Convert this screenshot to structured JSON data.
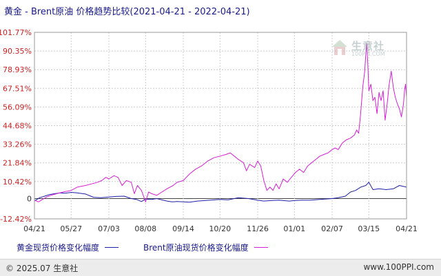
{
  "title": "黄金 - Brent原油 价格趋势比较(2021-04-21 - 2022-04-21)",
  "footer": {
    "copyright": "© 2025.07 生意社",
    "website": "www.100PPI.com"
  },
  "watermark": {
    "name": "生意社",
    "url": "100PPI.COM"
  },
  "colors": {
    "gold_series": "#1f1fa8",
    "brent_series": "#d61fd6",
    "axis_positive": "#cc2222",
    "axis_negative": "#cc2222",
    "grid": "#cccccc",
    "zero_line": "#444444"
  },
  "chart_data": {
    "type": "line",
    "ylim": [
      -12.42,
      101.77
    ],
    "yticks": [
      "101.77%",
      "90.35%",
      "78.93%",
      "67.51%",
      "56.09%",
      "44.68%",
      "33.26%",
      "21.84%",
      "10.42%",
      "0",
      "-12.42%"
    ],
    "ytick_values": [
      101.77,
      90.35,
      78.93,
      67.51,
      56.09,
      44.68,
      33.26,
      21.84,
      10.42,
      0,
      -12.42
    ],
    "xticks": [
      "04/21",
      "05/27",
      "07/03",
      "08/08",
      "09/14",
      "10/20",
      "11/26",
      "01/01",
      "02/07",
      "03/15",
      "04/21"
    ],
    "xtick_days": [
      0,
      36,
      73,
      109,
      146,
      182,
      219,
      255,
      292,
      328,
      365
    ],
    "xlim_days": [
      0,
      365
    ],
    "series": [
      {
        "name": "黄金现货价格变化幅度",
        "color": "#1f1fa8",
        "points": [
          [
            0,
            -1.5
          ],
          [
            5,
            0.5
          ],
          [
            10,
            1.5
          ],
          [
            15,
            2.5
          ],
          [
            20,
            3
          ],
          [
            25,
            3.5
          ],
          [
            30,
            3.3
          ],
          [
            36,
            3.8
          ],
          [
            42,
            3.5
          ],
          [
            50,
            2.8
          ],
          [
            58,
            0.8
          ],
          [
            65,
            0.5
          ],
          [
            73,
            1
          ],
          [
            80,
            1.3
          ],
          [
            88,
            1.5
          ],
          [
            95,
            0
          ],
          [
            100,
            -0.5
          ],
          [
            105,
            -1.8
          ],
          [
            109,
            -0.3
          ],
          [
            115,
            -0.5
          ],
          [
            120,
            0
          ],
          [
            125,
            -0.8
          ],
          [
            130,
            -1.5
          ],
          [
            135,
            -2
          ],
          [
            140,
            -1.8
          ],
          [
            146,
            -2
          ],
          [
            152,
            -2.2
          ],
          [
            160,
            -1.5
          ],
          [
            165,
            -1.3
          ],
          [
            172,
            -1
          ],
          [
            182,
            -0.5
          ],
          [
            190,
            -0.8
          ],
          [
            200,
            0.5
          ],
          [
            210,
            0
          ],
          [
            219,
            -1
          ],
          [
            225,
            -1.5
          ],
          [
            232,
            -1.2
          ],
          [
            240,
            -1
          ],
          [
            250,
            -1.5
          ],
          [
            255,
            -1.2
          ],
          [
            262,
            -1
          ],
          [
            270,
            -1
          ],
          [
            280,
            -0.5
          ],
          [
            292,
            0
          ],
          [
            298,
            0.5
          ],
          [
            305,
            1.5
          ],
          [
            310,
            4
          ],
          [
            315,
            5
          ],
          [
            320,
            7
          ],
          [
            325,
            8
          ],
          [
            328,
            10
          ],
          [
            332,
            5.5
          ],
          [
            338,
            6
          ],
          [
            345,
            5.5
          ],
          [
            352,
            6
          ],
          [
            358,
            8
          ],
          [
            365,
            7
          ]
        ]
      },
      {
        "name": "Brent原油现货价格变化幅度",
        "color": "#d61fd6",
        "points": [
          [
            0,
            -1
          ],
          [
            4,
            -2
          ],
          [
            8,
            -0.5
          ],
          [
            12,
            1
          ],
          [
            16,
            2
          ],
          [
            22,
            3
          ],
          [
            28,
            4
          ],
          [
            36,
            5
          ],
          [
            42,
            7
          ],
          [
            50,
            8
          ],
          [
            56,
            9
          ],
          [
            62,
            10
          ],
          [
            66,
            11
          ],
          [
            70,
            13
          ],
          [
            73,
            12
          ],
          [
            78,
            14
          ],
          [
            82,
            13
          ],
          [
            86,
            8
          ],
          [
            90,
            11
          ],
          [
            95,
            10
          ],
          [
            98,
            3
          ],
          [
            101,
            8
          ],
          [
            105,
            5
          ],
          [
            109,
            -2
          ],
          [
            112,
            4
          ],
          [
            115,
            3
          ],
          [
            120,
            2
          ],
          [
            125,
            4
          ],
          [
            130,
            6
          ],
          [
            136,
            8
          ],
          [
            140,
            10
          ],
          [
            146,
            11
          ],
          [
            152,
            15
          ],
          [
            158,
            18
          ],
          [
            164,
            20
          ],
          [
            170,
            23
          ],
          [
            176,
            25
          ],
          [
            182,
            26
          ],
          [
            188,
            27
          ],
          [
            192,
            28
          ],
          [
            196,
            26
          ],
          [
            200,
            24
          ],
          [
            205,
            22
          ],
          [
            208,
            17
          ],
          [
            211,
            21
          ],
          [
            216,
            19
          ],
          [
            219,
            23
          ],
          [
            222,
            20
          ],
          [
            225,
            11
          ],
          [
            228,
            5
          ],
          [
            231,
            7
          ],
          [
            234,
            5
          ],
          [
            237,
            9
          ],
          [
            240,
            6
          ],
          [
            244,
            12
          ],
          [
            248,
            10
          ],
          [
            252,
            13
          ],
          [
            256,
            16
          ],
          [
            260,
            18
          ],
          [
            264,
            16
          ],
          [
            268,
            20
          ],
          [
            272,
            22
          ],
          [
            276,
            24
          ],
          [
            280,
            26
          ],
          [
            284,
            27
          ],
          [
            288,
            28
          ],
          [
            292,
            30
          ],
          [
            295,
            31
          ],
          [
            298,
            30
          ],
          [
            302,
            34
          ],
          [
            306,
            36
          ],
          [
            310,
            37
          ],
          [
            314,
            39
          ],
          [
            316,
            42
          ],
          [
            318,
            40
          ],
          [
            320,
            52
          ],
          [
            322,
            68
          ],
          [
            324,
            78
          ],
          [
            325,
            88
          ],
          [
            326,
            95
          ],
          [
            327,
            82
          ],
          [
            328,
            66
          ],
          [
            330,
            70
          ],
          [
            332,
            60
          ],
          [
            334,
            62
          ],
          [
            336,
            52
          ],
          [
            338,
            65
          ],
          [
            340,
            60
          ],
          [
            342,
            66
          ],
          [
            344,
            48
          ],
          [
            346,
            58
          ],
          [
            348,
            70
          ],
          [
            350,
            78
          ],
          [
            352,
            68
          ],
          [
            354,
            62
          ],
          [
            356,
            58
          ],
          [
            358,
            55
          ],
          [
            360,
            50
          ],
          [
            362,
            58
          ],
          [
            363,
            66
          ],
          [
            364,
            70
          ],
          [
            365,
            62
          ]
        ]
      }
    ]
  }
}
